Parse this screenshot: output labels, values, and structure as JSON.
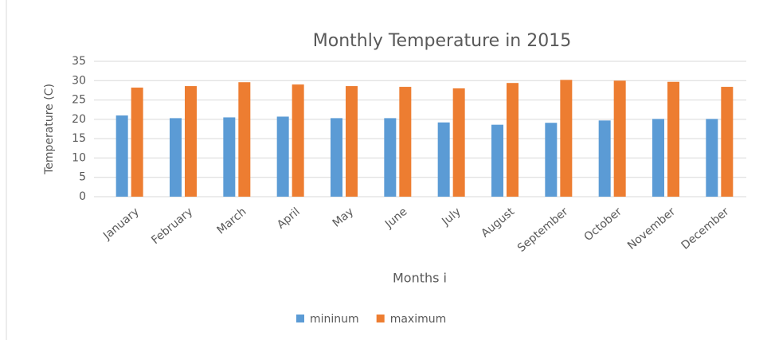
{
  "chart_data": {
    "type": "bar",
    "title": "Monthly Temperature in 2015",
    "x_label": "Months i",
    "y_label": "Temperature (C)",
    "categories": [
      "January",
      "February",
      "March",
      "April",
      "May",
      "June",
      "July",
      "August",
      "September",
      "October",
      "November",
      "December"
    ],
    "series": [
      {
        "name": "mininum",
        "color": "#5b9bd5",
        "values": [
          21,
          20.3,
          20.5,
          20.7,
          20.3,
          20.3,
          19.2,
          18.6,
          19.1,
          19.7,
          20.1,
          20.1
        ]
      },
      {
        "name": "maximum",
        "color": "#ed7d31",
        "values": [
          28.2,
          28.6,
          29.6,
          29,
          28.6,
          28.4,
          28,
          29.4,
          30.2,
          30,
          29.7,
          28.4
        ]
      }
    ],
    "ylim": [
      0,
      35
    ],
    "yticks": [
      0,
      5,
      10,
      15,
      20,
      25,
      30,
      35
    ],
    "grid": true,
    "legend": "bottom"
  }
}
